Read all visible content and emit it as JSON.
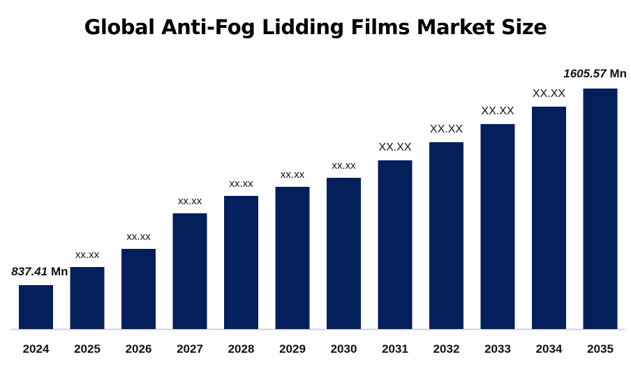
{
  "chart_data": {
    "type": "bar",
    "title": "Global Anti-Fog Lidding Films Market Size",
    "xlabel": "",
    "ylabel": "",
    "categories": [
      "2024",
      "2025",
      "2026",
      "2027",
      "2028",
      "2029",
      "2030",
      "2031",
      "2032",
      "2033",
      "2034",
      "2035"
    ],
    "values": [
      837.41,
      908.2,
      979.1,
      1118.0,
      1186.1,
      1221.5,
      1256.9,
      1325.0,
      1395.8,
      1466.7,
      1534.8,
      1605.57
    ],
    "data_labels": [
      "837.41",
      "xx.xx",
      "xx.xx",
      "xx.xx",
      "xx.xx",
      "xx.xx",
      "xx.xx",
      "XX.XX",
      "XX.XX",
      "XX.XX",
      "XX.XX",
      "1605.57"
    ],
    "unit_suffix": "Mn",
    "ylim": [
      665.8,
      1700
    ],
    "grid": false,
    "legend": "none",
    "bar_color": "#03205c",
    "axis_color": "#d0d0d0"
  }
}
